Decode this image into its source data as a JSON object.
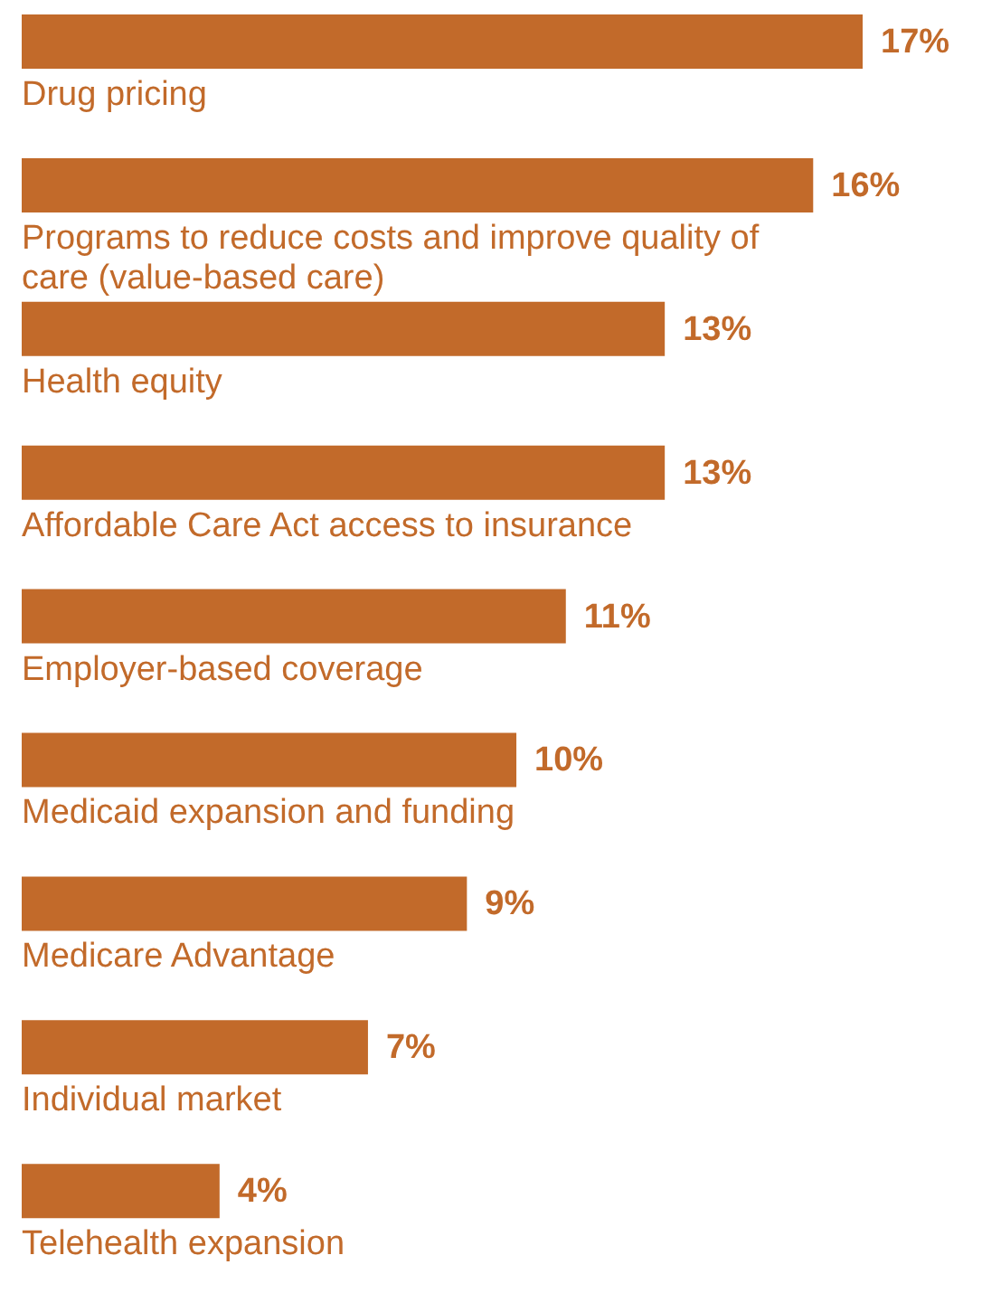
{
  "chart_data": {
    "type": "bar",
    "orientation": "horizontal",
    "color": "#c26a2a",
    "categories": [
      "Drug pricing",
      "Programs to reduce costs and improve quality of care (value-based care)",
      "Health equity",
      "Affordable Care Act access to insurance",
      "Employer-based coverage",
      "Medicaid expansion and funding",
      "Medicare Advantage",
      "Individual market",
      "Telehealth expansion"
    ],
    "values": [
      17,
      16,
      13,
      13,
      11,
      10,
      9,
      7,
      4
    ],
    "value_labels": [
      "17%",
      "16%",
      "13%",
      "13%",
      "11%",
      "10%",
      "9%",
      "7%",
      "4%"
    ]
  }
}
